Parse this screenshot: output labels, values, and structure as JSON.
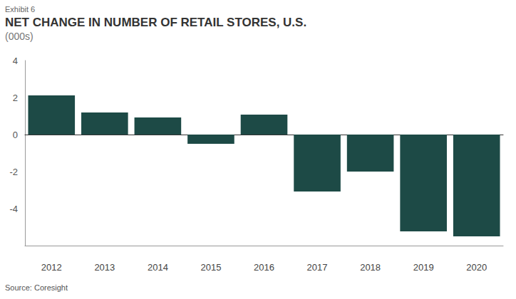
{
  "chart_data": {
    "type": "bar",
    "label": "Exhibit 6",
    "title": "NET CHANGE IN NUMBER OF RETAIL STORES, U.S.",
    "subtitle": "(000s)",
    "source": "Source: Coresight",
    "categories": [
      "2012",
      "2013",
      "2014",
      "2015",
      "2016",
      "2017",
      "2018",
      "2019",
      "2020"
    ],
    "values": [
      2.12,
      1.19,
      0.92,
      -0.5,
      1.08,
      -3.08,
      -2.0,
      -5.23,
      -5.5
    ],
    "color": "#1d4a46",
    "ylim": [
      -6,
      4
    ],
    "yticks": [
      -4,
      -2,
      0,
      2,
      4
    ],
    "grid": false
  }
}
